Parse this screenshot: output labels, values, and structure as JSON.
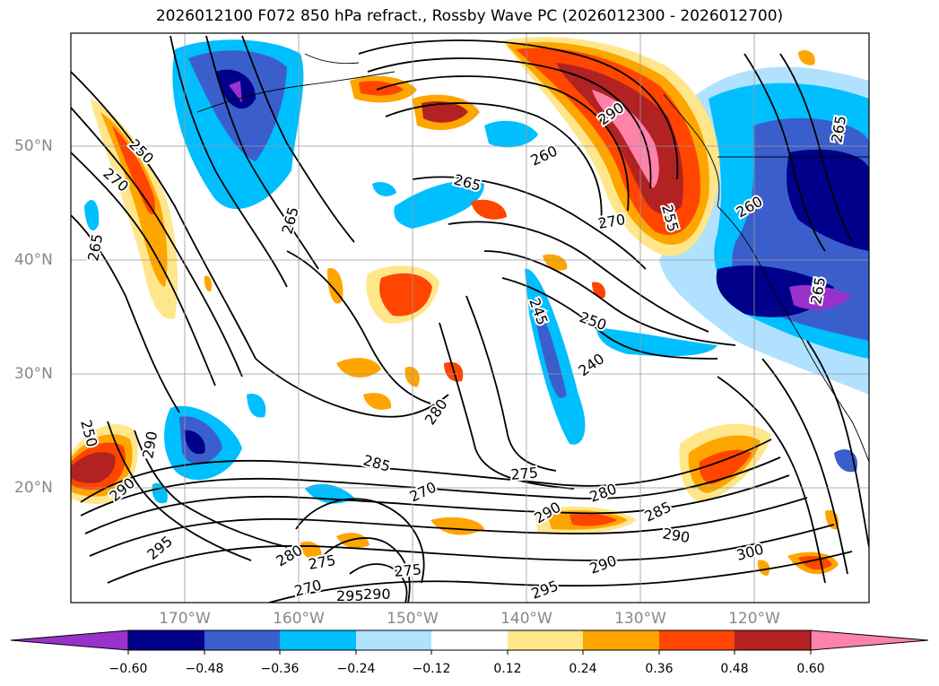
{
  "title": "2026012100 F072 850 hPa refract., Rossby Wave PC (2026012300 - 2026012700)",
  "lat_labels": [
    "50°N",
    "40°N",
    "30°N",
    "20°N"
  ],
  "lon_labels": [
    "170°W",
    "160°W",
    "150°W",
    "140°W",
    "130°W",
    "120°W"
  ],
  "contour_labels": [
    "250",
    "270",
    "265",
    "265",
    "265",
    "260",
    "270",
    "255",
    "290",
    "260",
    "265",
    "245",
    "250",
    "240",
    "280",
    "285",
    "270",
    "275",
    "280",
    "290",
    "285",
    "290",
    "300",
    "295",
    "290",
    "275",
    "280",
    "275",
    "290",
    "295",
    "290",
    "295",
    "270",
    "250",
    "290",
    "265"
  ],
  "colorbar": {
    "ticks": [
      "−0.60",
      "−0.48",
      "−0.36",
      "−0.24",
      "−0.12",
      "0.12",
      "0.24",
      "0.36",
      "0.48",
      "0.60"
    ],
    "colors": [
      "#9932CC",
      "#00008B",
      "#3A5FCD",
      "#00BFFF",
      "#B0E2FF",
      "#FFFFFF",
      "#FFE68A",
      "#FFA500",
      "#FF4500",
      "#B22222",
      "#FF82AB"
    ]
  }
}
